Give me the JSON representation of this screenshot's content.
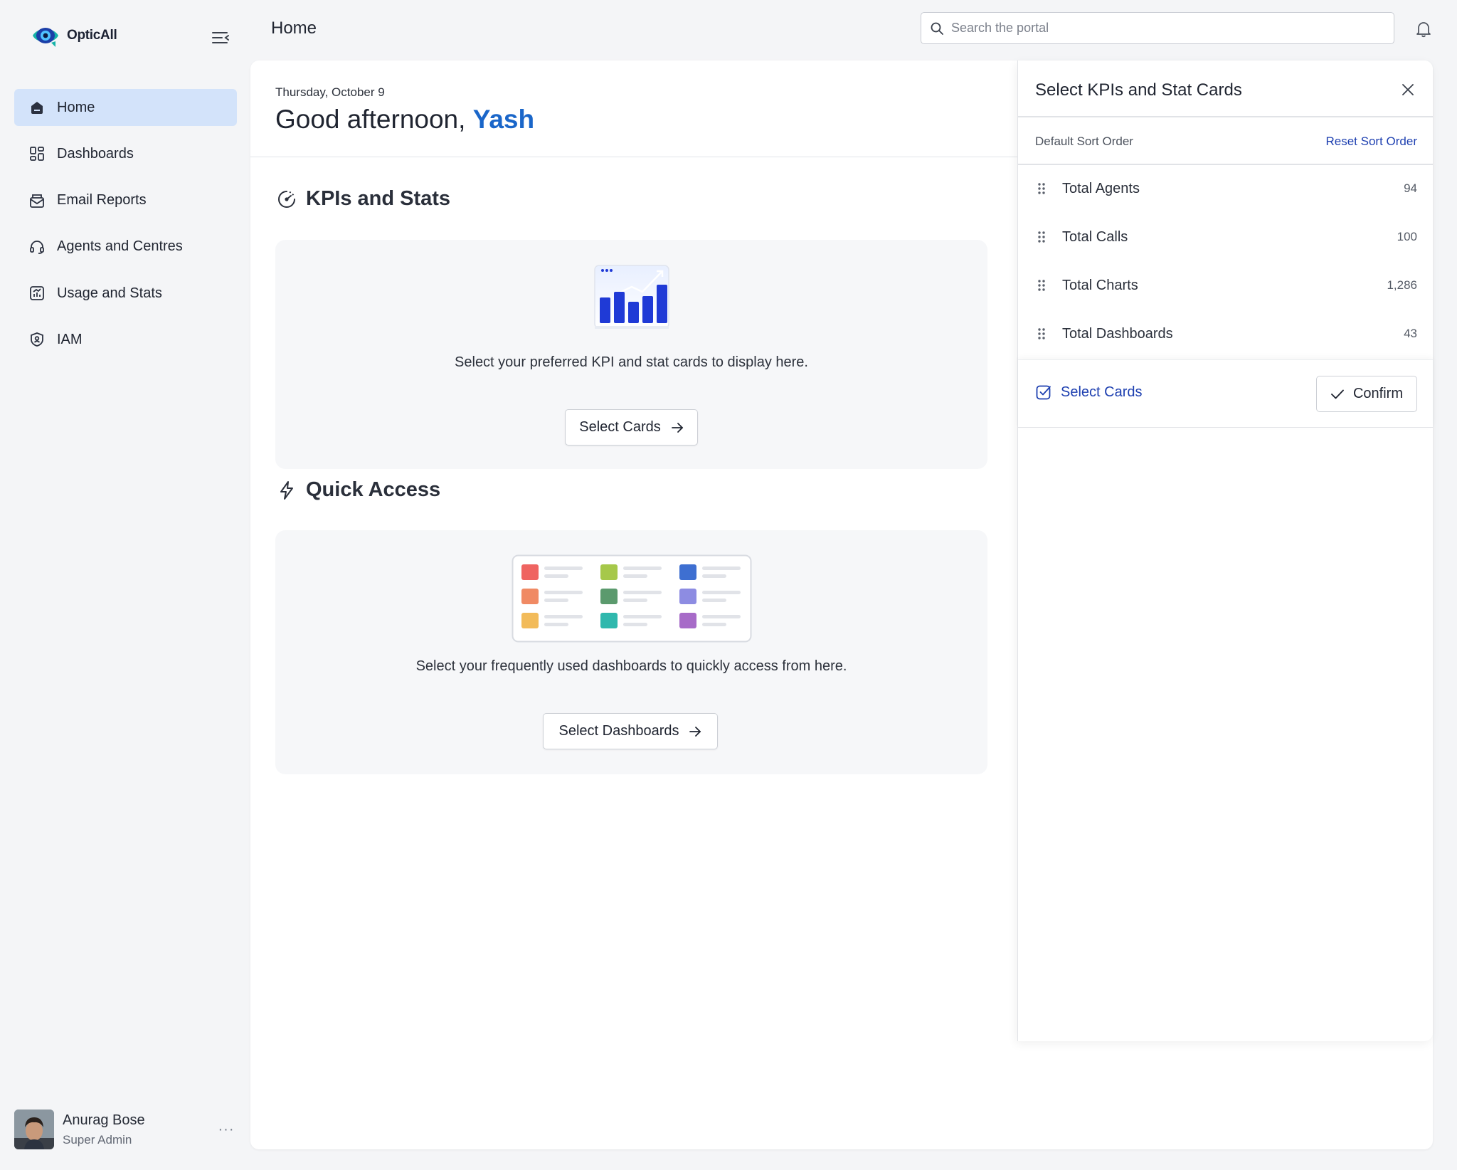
{
  "app": {
    "logo_text": "OpticAll",
    "page_title": "Home"
  },
  "search": {
    "placeholder": "Search the portal"
  },
  "sidebar": {
    "items": [
      {
        "label": "Home",
        "icon": "home-icon",
        "active": true
      },
      {
        "label": "Dashboards",
        "icon": "dashboards-icon"
      },
      {
        "label": "Email Reports",
        "icon": "email-reports-icon"
      },
      {
        "label": "Agents and Centres",
        "icon": "headset-icon"
      },
      {
        "label": "Usage and Stats",
        "icon": "usage-chart-icon"
      },
      {
        "label": "IAM",
        "icon": "shield-user-icon"
      }
    ],
    "user": {
      "name": "Anurag Bose",
      "role": "Super Admin"
    }
  },
  "greeting": {
    "date": "Thursday, October 9",
    "prefix": "Good afternoon, ",
    "name": "Yash"
  },
  "kpis_section": {
    "title": "KPIs and Stats",
    "text": "Select your preferred KPI and stat cards to display here.",
    "button": "Select Cards"
  },
  "quick_access": {
    "title": "Quick Access",
    "text": "Select your frequently used dashboards to quickly access from here.",
    "button": "Select Dashboards"
  },
  "drawer": {
    "title": "Select KPIs and Stat Cards",
    "sort_label": "Default Sort Order",
    "reset_label": "Reset Sort Order",
    "items": [
      {
        "label": "Total Agents",
        "value": "94"
      },
      {
        "label": "Total Calls",
        "value": "100"
      },
      {
        "label": "Total Charts",
        "value": "1,286"
      },
      {
        "label": "Total Dashboards",
        "value": "43"
      }
    ],
    "select_cards_label": "Select Cards",
    "confirm_label": "Confirm"
  },
  "colors": {
    "accent": "#1a66c9",
    "link": "#1d3fb0",
    "active_nav": "#d3e3fa",
    "chart_bar": "#1f3ad6"
  }
}
